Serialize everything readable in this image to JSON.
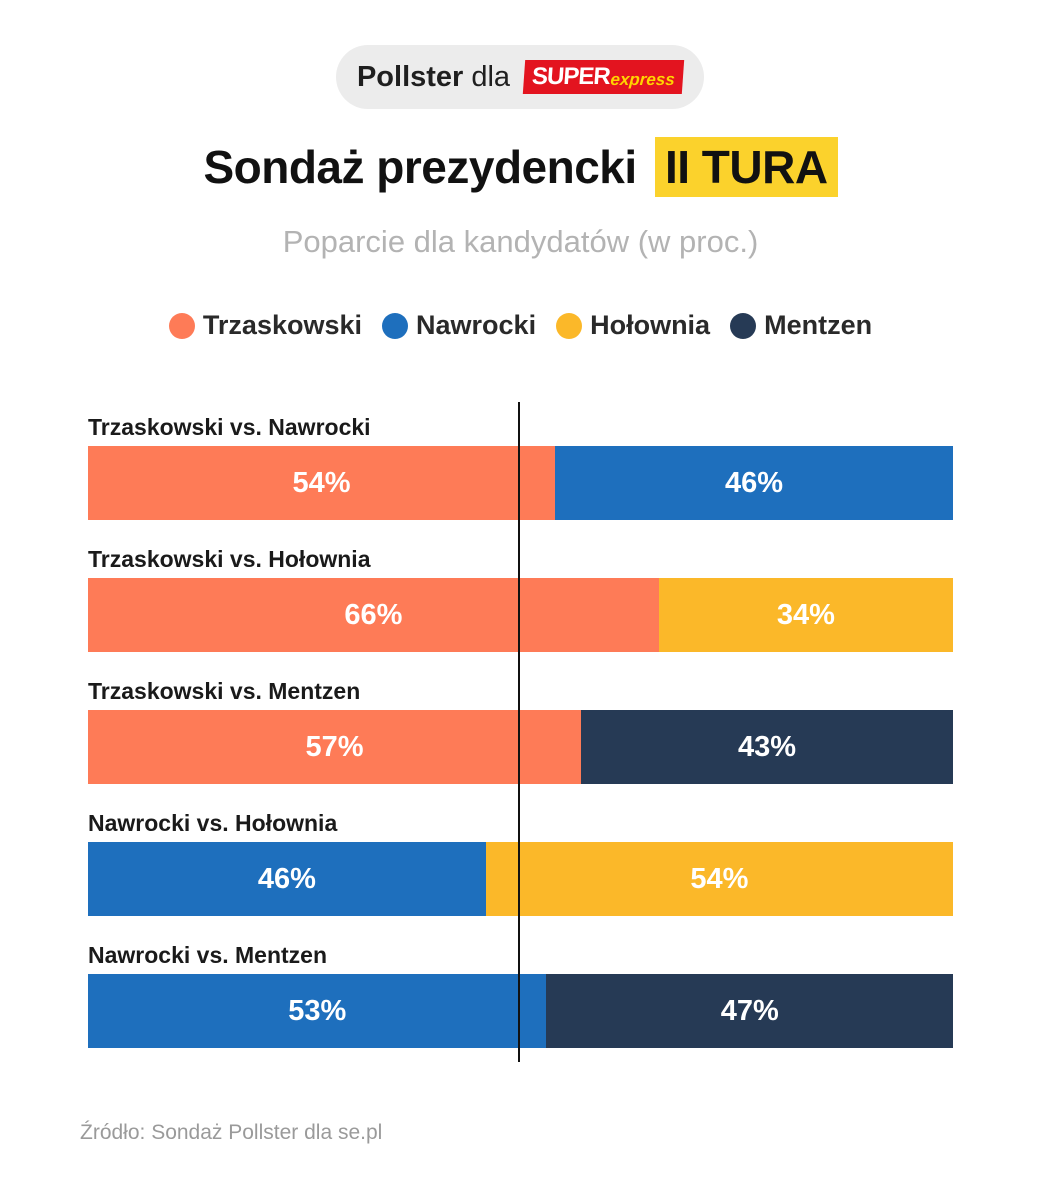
{
  "header": {
    "pollster": "Pollster",
    "dla": "dla",
    "brand_main": "SUPER",
    "brand_sub": "express"
  },
  "title": {
    "main": "Sondaż prezydencki",
    "highlight": "II TURA"
  },
  "subtitle": "Poparcie dla kandydatów (w proc.)",
  "colors": {
    "Trzaskowski": "#fe7b57",
    "Nawrocki": "#1e6fbd",
    "Hołownia": "#fbb829",
    "Mentzen": "#263a55",
    "highlight": "#fbd22c",
    "brand": "#e3141f"
  },
  "legend": [
    "Trzaskowski",
    "Nawrocki",
    "Hołownia",
    "Mentzen"
  ],
  "chart_data": {
    "type": "bar",
    "orientation": "horizontal",
    "stacked": true,
    "unit": "%",
    "xlim": [
      0,
      100
    ],
    "categories": [
      "Trzaskowski vs. Nawrocki",
      "Trzaskowski vs. Hołownia",
      "Trzaskowski vs. Mentzen",
      "Nawrocki vs. Hołownia",
      "Nawrocki vs. Mentzen"
    ],
    "matchups": [
      {
        "label": "Trzaskowski vs. Nawrocki",
        "left": {
          "name": "Trzaskowski",
          "value": 54,
          "text": "54%"
        },
        "right": {
          "name": "Nawrocki",
          "value": 46,
          "text": "46%"
        }
      },
      {
        "label": "Trzaskowski vs. Hołownia",
        "left": {
          "name": "Trzaskowski",
          "value": 66,
          "text": "66%"
        },
        "right": {
          "name": "Hołownia",
          "value": 34,
          "text": "34%"
        }
      },
      {
        "label": "Trzaskowski vs. Mentzen",
        "left": {
          "name": "Trzaskowski",
          "value": 57,
          "text": "57%"
        },
        "right": {
          "name": "Mentzen",
          "value": 43,
          "text": "43%"
        }
      },
      {
        "label": "Nawrocki vs. Hołownia",
        "left": {
          "name": "Nawrocki",
          "value": 46,
          "text": "46%"
        },
        "right": {
          "name": "Hołownia",
          "value": 54,
          "text": "54%"
        }
      },
      {
        "label": "Nawrocki vs. Mentzen",
        "left": {
          "name": "Nawrocki",
          "value": 53,
          "text": "53%"
        },
        "right": {
          "name": "Mentzen",
          "value": 47,
          "text": "47%"
        }
      }
    ],
    "reference_line": 50,
    "grid": false,
    "legend_position": "top-center"
  },
  "source": "Źródło: Sondaż Pollster dla se.pl"
}
